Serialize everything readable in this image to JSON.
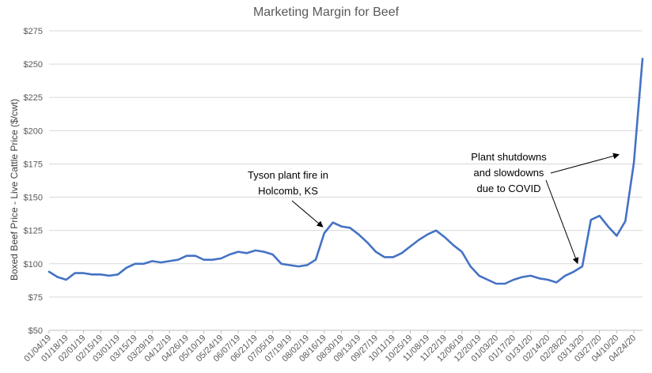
{
  "chart_data": {
    "type": "line",
    "title": "Marketing Margin for Beef",
    "xlabel": "",
    "ylabel": "Boxed Beef Price - Live Cattle Price ($/cwt)",
    "ylim": [
      50,
      275
    ],
    "yticks": [
      50,
      75,
      100,
      125,
      150,
      175,
      200,
      225,
      250,
      275
    ],
    "ytick_labels": [
      "$50",
      "$75",
      "$100",
      "$125",
      "$150",
      "$175",
      "$200",
      "$225",
      "$250",
      "$275"
    ],
    "grid": true,
    "legend": "none",
    "series_color": "#4472c4",
    "x": [
      "01/04/19",
      "01/11/19",
      "01/18/19",
      "01/25/19",
      "02/01/19",
      "02/08/19",
      "02/15/19",
      "02/22/19",
      "03/01/19",
      "03/08/19",
      "03/15/19",
      "03/22/19",
      "03/29/19",
      "04/05/19",
      "04/12/19",
      "04/19/19",
      "04/26/19",
      "05/03/19",
      "05/10/19",
      "05/17/19",
      "05/24/19",
      "05/31/19",
      "06/07/19",
      "06/14/19",
      "06/21/19",
      "06/28/19",
      "07/05/19",
      "07/12/19",
      "07/19/19",
      "07/26/19",
      "08/02/19",
      "08/09/19",
      "08/16/19",
      "08/23/19",
      "08/30/19",
      "09/06/19",
      "09/13/19",
      "09/20/19",
      "09/27/19",
      "10/04/19",
      "10/11/19",
      "10/18/19",
      "10/25/19",
      "11/01/19",
      "11/08/19",
      "11/15/19",
      "11/22/19",
      "11/29/19",
      "12/06/19",
      "12/13/19",
      "12/20/19",
      "12/27/19",
      "01/03/20",
      "01/10/20",
      "01/17/20",
      "01/24/20",
      "01/31/20",
      "02/07/20",
      "02/14/20",
      "02/21/20",
      "02/28/20",
      "03/06/20",
      "03/13/20",
      "03/20/20",
      "03/27/20",
      "04/03/20",
      "04/10/20",
      "04/17/20",
      "04/24/20",
      "05/01/20"
    ],
    "x_tick_labels": [
      "01/04/19",
      "01/18/19",
      "02/01/19",
      "02/15/19",
      "03/01/19",
      "03/15/19",
      "03/29/19",
      "04/12/19",
      "04/26/19",
      "05/10/19",
      "05/24/19",
      "06/07/19",
      "06/21/19",
      "07/05/19",
      "07/19/19",
      "08/02/19",
      "08/16/19",
      "08/30/19",
      "09/13/19",
      "09/27/19",
      "10/11/19",
      "10/25/19",
      "11/08/19",
      "11/22/19",
      "12/06/19",
      "12/20/19",
      "01/03/20",
      "01/17/20",
      "01/31/20",
      "02/14/20",
      "02/28/20",
      "03/13/20",
      "03/27/20",
      "04/10/20",
      "04/24/20"
    ],
    "series": [
      {
        "values": [
          94,
          90,
          88,
          93,
          93,
          92,
          92,
          91,
          92,
          97,
          100,
          100,
          102,
          101,
          102,
          103,
          106,
          106,
          103,
          103,
          104,
          107,
          109,
          108,
          110,
          109,
          107,
          100,
          99,
          98,
          99,
          103,
          123,
          131,
          128,
          127,
          122,
          116,
          109,
          105,
          105,
          108,
          113,
          118,
          122,
          125,
          120,
          114,
          109,
          98,
          91,
          88,
          85,
          85,
          88,
          90,
          91,
          89,
          88,
          86,
          91,
          94,
          98,
          133,
          136,
          128,
          121,
          132,
          176,
          254
        ]
      }
    ],
    "annotations": [
      {
        "id": "tyson",
        "lines": [
          "Tyson plant fire in",
          "Holcomb, KS"
        ],
        "points_to": "08/16/19"
      },
      {
        "id": "covid",
        "lines": [
          "Plant shutdowns",
          "and slowdowns",
          "due to COVID"
        ],
        "points_to": [
          "03/13/20",
          "04/24/20"
        ]
      }
    ]
  }
}
